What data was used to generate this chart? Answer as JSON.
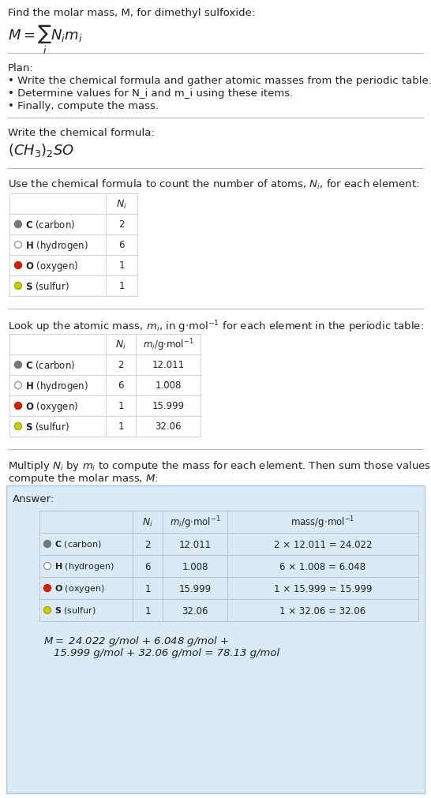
{
  "title_line1": "Find the molar mass, M, for dimethyl sulfoxide:",
  "plan_header": "Plan:",
  "plan_bullets": [
    "• Write the chemical formula and gather atomic masses from the periodic table.",
    "• Determine values for N_i and m_i using these items.",
    "• Finally, compute the mass."
  ],
  "formula_header": "Write the chemical formula:",
  "elements": [
    "C (carbon)",
    "H (hydrogen)",
    "O (oxygen)",
    "S (sulfur)"
  ],
  "element_symbols": [
    "C",
    "H",
    "O",
    "S"
  ],
  "dot_colors": [
    "#777777",
    "#ffffff",
    "#cc2200",
    "#cccc00"
  ],
  "dot_edge_colors": [
    "#777777",
    "#999999",
    "#cc2200",
    "#aaaa00"
  ],
  "N_i": [
    2,
    6,
    1,
    1
  ],
  "m_i": [
    "12.011",
    "1.008",
    "15.999",
    "32.06"
  ],
  "mass_formulas": [
    "2 × 12.011 = 24.022",
    "6 × 1.008 = 6.048",
    "1 × 15.999 = 15.999",
    "1 × 32.06 = 32.06"
  ],
  "answer_box_color": "#daeaf7",
  "answer_border_color": "#aac8e0",
  "bg_color": "#ffffff",
  "text_color": "#222222",
  "sep_line_color": "#bbbbbb",
  "table_line_color": "#cccccc"
}
